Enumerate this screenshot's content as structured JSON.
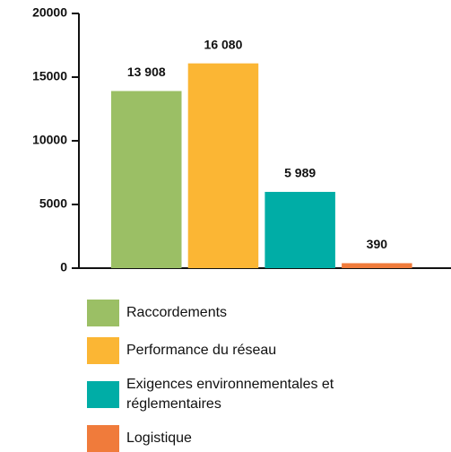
{
  "chart_data": {
    "type": "bar",
    "categories": [
      "Raccordements",
      "Performance du réseau",
      "Exigences environnementales et réglementaires",
      "Logistique"
    ],
    "values": [
      13908,
      16080,
      5989,
      390
    ],
    "value_labels": [
      "13 908",
      "16 080",
      "5 989",
      "390"
    ],
    "colors": [
      "#9bbf65",
      "#fbb634",
      "#00ada6",
      "#f07b3b"
    ],
    "ylim": [
      0,
      20000
    ],
    "yticks": [
      0,
      5000,
      10000,
      15000,
      20000
    ],
    "grid": false
  }
}
